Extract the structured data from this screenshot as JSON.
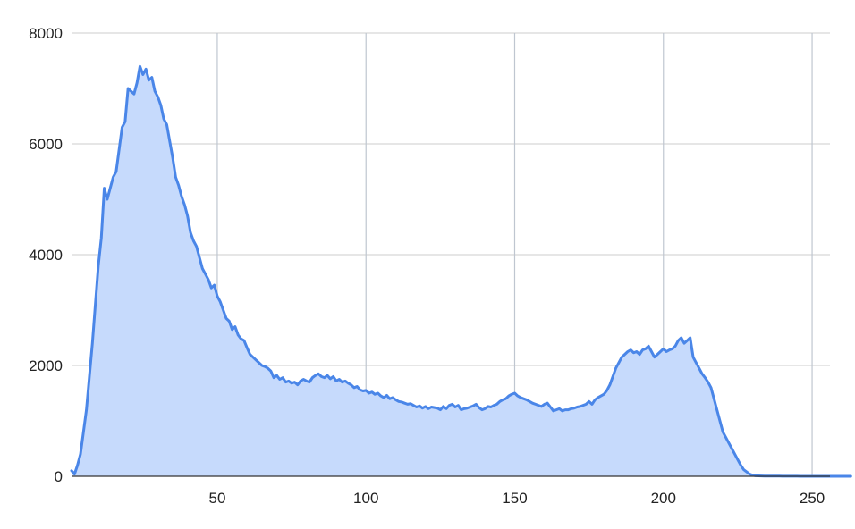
{
  "chart_data": {
    "type": "area",
    "title": "",
    "xlabel": "",
    "ylabel": "",
    "xlim": [
      1,
      256
    ],
    "ylim": [
      0,
      8000
    ],
    "x_ticks": [
      50,
      100,
      150,
      200,
      250
    ],
    "y_ticks": [
      0,
      2000,
      4000,
      6000,
      8000
    ],
    "grid": true,
    "legend": "none",
    "colors": {
      "line": "#4a86e8",
      "fill": "#c6dafc"
    },
    "series": [
      {
        "values": [
          100,
          40,
          200,
          400,
          800,
          1200,
          1800,
          2400,
          3100,
          3800,
          4300,
          5200,
          5000,
          5200,
          5400,
          5500,
          5900,
          6300,
          6400,
          7000,
          6950,
          6900,
          7100,
          7400,
          7250,
          7350,
          7150,
          7200,
          6950,
          6850,
          6700,
          6450,
          6350,
          6050,
          5750,
          5400,
          5250,
          5050,
          4900,
          4700,
          4400,
          4250,
          4150,
          3950,
          3750,
          3650,
          3550,
          3400,
          3450,
          3250,
          3150,
          3000,
          2850,
          2800,
          2650,
          2700,
          2550,
          2480,
          2450,
          2320,
          2200,
          2150,
          2100,
          2050,
          2000,
          1980,
          1950,
          1900,
          1780,
          1820,
          1750,
          1780,
          1700,
          1720,
          1680,
          1700,
          1650,
          1720,
          1750,
          1720,
          1700,
          1780,
          1820,
          1850,
          1800,
          1780,
          1820,
          1760,
          1800,
          1720,
          1750,
          1700,
          1720,
          1680,
          1650,
          1600,
          1620,
          1560,
          1540,
          1550,
          1500,
          1520,
          1480,
          1500,
          1450,
          1420,
          1460,
          1400,
          1420,
          1380,
          1350,
          1340,
          1320,
          1300,
          1310,
          1280,
          1250,
          1270,
          1230,
          1260,
          1220,
          1250,
          1240,
          1230,
          1200,
          1260,
          1220,
          1280,
          1300,
          1250,
          1280,
          1200,
          1220,
          1230,
          1250,
          1270,
          1300,
          1240,
          1200,
          1220,
          1260,
          1250,
          1280,
          1300,
          1350,
          1380,
          1400,
          1450,
          1480,
          1500,
          1450,
          1420,
          1400,
          1380,
          1350,
          1320,
          1300,
          1280,
          1260,
          1300,
          1320,
          1250,
          1180,
          1200,
          1220,
          1180,
          1200,
          1200,
          1220,
          1230,
          1250,
          1260,
          1280,
          1300,
          1350,
          1300,
          1380,
          1420,
          1450,
          1480,
          1550,
          1650,
          1800,
          1950,
          2050,
          2150,
          2200,
          2250,
          2280,
          2230,
          2250,
          2200,
          2280,
          2300,
          2350,
          2250,
          2150,
          2200,
          2250,
          2300,
          2250,
          2280,
          2300,
          2350,
          2450,
          2500,
          2400,
          2450,
          2500,
          2150,
          2050,
          1950,
          1850,
          1780,
          1700,
          1600,
          1400,
          1200,
          1000,
          800,
          700,
          600,
          500,
          400,
          300,
          200,
          120,
          80,
          40,
          20,
          10,
          8,
          6,
          5,
          4,
          4,
          3,
          3,
          3,
          2,
          2,
          2,
          2,
          2,
          2,
          1,
          1,
          1,
          1,
          1,
          1,
          1,
          1,
          1,
          1,
          1,
          1,
          1,
          1,
          1,
          0,
          0,
          0
        ]
      }
    ]
  }
}
